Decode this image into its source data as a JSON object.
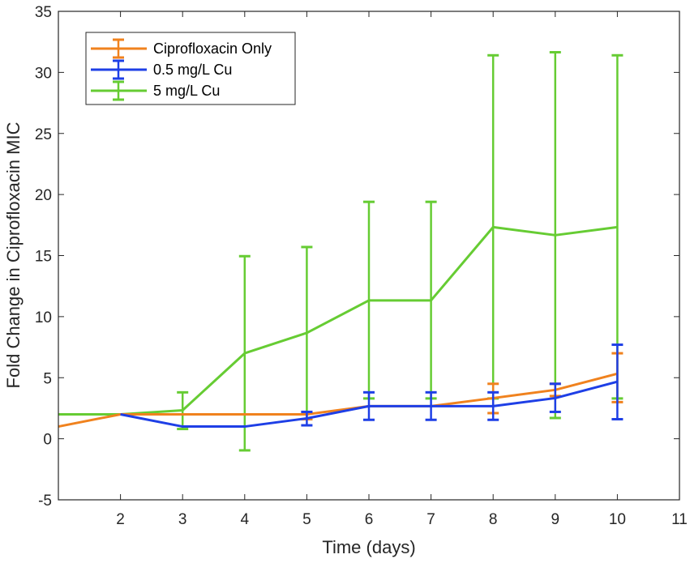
{
  "chart_data": {
    "type": "line",
    "title": "",
    "xlabel": "Time (days)",
    "ylabel": "Fold Change in Ciprofloxacin MIC",
    "xlim": [
      1,
      11
    ],
    "ylim": [
      -5,
      35
    ],
    "xticks": [
      2,
      3,
      4,
      5,
      6,
      7,
      8,
      9,
      10,
      11
    ],
    "yticks": [
      -5,
      0,
      5,
      10,
      15,
      20,
      25,
      30,
      35
    ],
    "legend_position": "top-left",
    "series": [
      {
        "name": "Ciprofloxacin Only",
        "color": "#F0821E",
        "x": [
          1,
          2,
          3,
          4,
          5,
          6,
          7,
          8,
          9,
          10
        ],
        "y": [
          1,
          2,
          2,
          2,
          2,
          2.67,
          2.67,
          3.33,
          4,
          5.33
        ],
        "error": [
          {
            "x": 5,
            "low": 1.6,
            "high": 2.2
          },
          {
            "x": 8,
            "low": 2.1,
            "high": 4.5
          },
          {
            "x": 9,
            "low": 3.5,
            "high": 4.5
          },
          {
            "x": 10,
            "low": 3.0,
            "high": 7.0
          }
        ]
      },
      {
        "name": "0.5 mg/L Cu",
        "color": "#1E3FE6",
        "x": [
          2,
          3,
          4,
          5,
          6,
          7,
          8,
          9,
          10
        ],
        "y": [
          2,
          1,
          1,
          1.67,
          2.67,
          2.67,
          2.67,
          3.33,
          4.67
        ],
        "error": [
          {
            "x": 5,
            "low": 1.1,
            "high": 2.2
          },
          {
            "x": 6,
            "low": 1.55,
            "high": 3.8
          },
          {
            "x": 7,
            "low": 1.55,
            "high": 3.8
          },
          {
            "x": 8,
            "low": 1.55,
            "high": 3.8
          },
          {
            "x": 9,
            "low": 2.2,
            "high": 4.5
          },
          {
            "x": 10,
            "low": 1.6,
            "high": 7.7
          }
        ]
      },
      {
        "name": "5 mg/L Cu",
        "color": "#66CC33",
        "x": [
          1,
          2,
          3,
          4,
          5,
          6,
          7,
          8,
          9,
          10
        ],
        "y": [
          2,
          2,
          2.33,
          7,
          8.67,
          11.33,
          11.33,
          17.33,
          16.67,
          17.33
        ],
        "error": [
          {
            "x": 3,
            "low": 0.8,
            "high": 3.8
          },
          {
            "x": 4,
            "low": -0.95,
            "high": 14.95
          },
          {
            "x": 5,
            "low": 1.6,
            "high": 15.7
          },
          {
            "x": 6,
            "low": 3.3,
            "high": 19.4
          },
          {
            "x": 7,
            "low": 3.3,
            "high": 19.4
          },
          {
            "x": 8,
            "low": 3.3,
            "high": 31.4
          },
          {
            "x": 9,
            "low": 1.7,
            "high": 31.65
          },
          {
            "x": 10,
            "low": 3.3,
            "high": 31.4
          }
        ]
      }
    ]
  }
}
